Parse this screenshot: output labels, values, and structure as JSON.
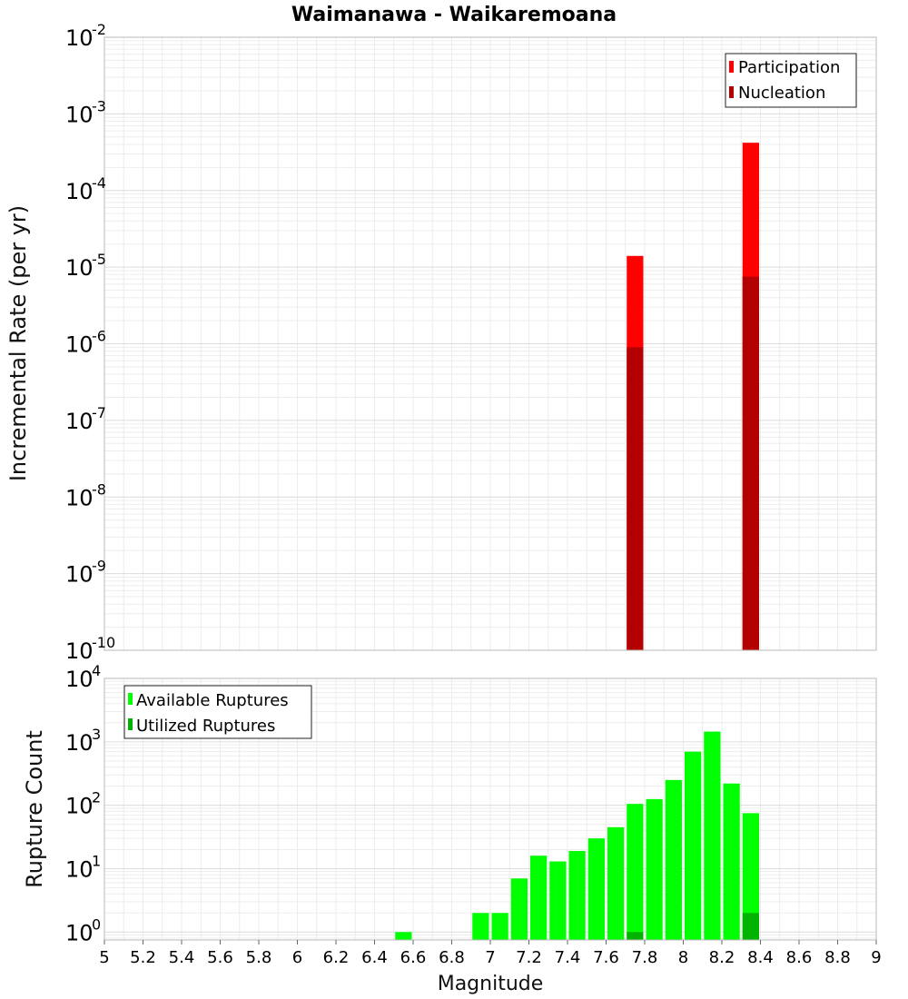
{
  "chart_data": [
    {
      "type": "bar",
      "title": "Waimanawa - Waikaremoana",
      "xlabel": "",
      "ylabel": "Incremental Rate (per yr)",
      "yscale": "log",
      "ylim": [
        1e-10,
        0.01
      ],
      "xlim": [
        5,
        9
      ],
      "bar_width": 0.1,
      "ytick_exponents": [
        -10,
        -9,
        -8,
        -7,
        -6,
        -5,
        -4,
        -3,
        -2
      ],
      "legend_position": "top-right",
      "series": [
        {
          "name": "Participation",
          "color": "#ff0000",
          "x": [
            7.75,
            8.35
          ],
          "values": [
            1.4e-05,
            0.00042
          ]
        },
        {
          "name": "Nucleation",
          "color": "#b30000",
          "x": [
            7.75,
            8.35
          ],
          "values": [
            9e-07,
            7.5e-06
          ]
        }
      ]
    },
    {
      "type": "bar",
      "title": "",
      "xlabel": "Magnitude",
      "ylabel": "Rupture Count",
      "yscale": "log",
      "ylim": [
        0.75,
        10000
      ],
      "xlim": [
        5,
        9
      ],
      "bar_width": 0.1,
      "xticks": [
        "5",
        "5.2",
        "5.4",
        "5.6",
        "5.8",
        "6",
        "6.2",
        "6.4",
        "6.6",
        "6.8",
        "7",
        "7.2",
        "7.4",
        "7.6",
        "7.8",
        "8",
        "8.2",
        "8.4",
        "8.6",
        "8.8",
        "9"
      ],
      "ytick_exponents": [
        0,
        1,
        2,
        3,
        4
      ],
      "legend_position": "top-left",
      "series": [
        {
          "name": "Available Ruptures",
          "color": "#00ff00",
          "x": [
            6.55,
            6.95,
            7.05,
            7.15,
            7.25,
            7.35,
            7.45,
            7.55,
            7.65,
            7.75,
            7.85,
            7.95,
            8.05,
            8.15,
            8.25,
            8.35
          ],
          "values": [
            1,
            2,
            2,
            7,
            16,
            13,
            19,
            30,
            45,
            105,
            125,
            250,
            700,
            1450,
            220,
            75
          ]
        },
        {
          "name": "Utilized Ruptures",
          "color": "#00b300",
          "x": [
            7.75,
            8.35
          ],
          "values": [
            1,
            2
          ]
        }
      ]
    }
  ]
}
